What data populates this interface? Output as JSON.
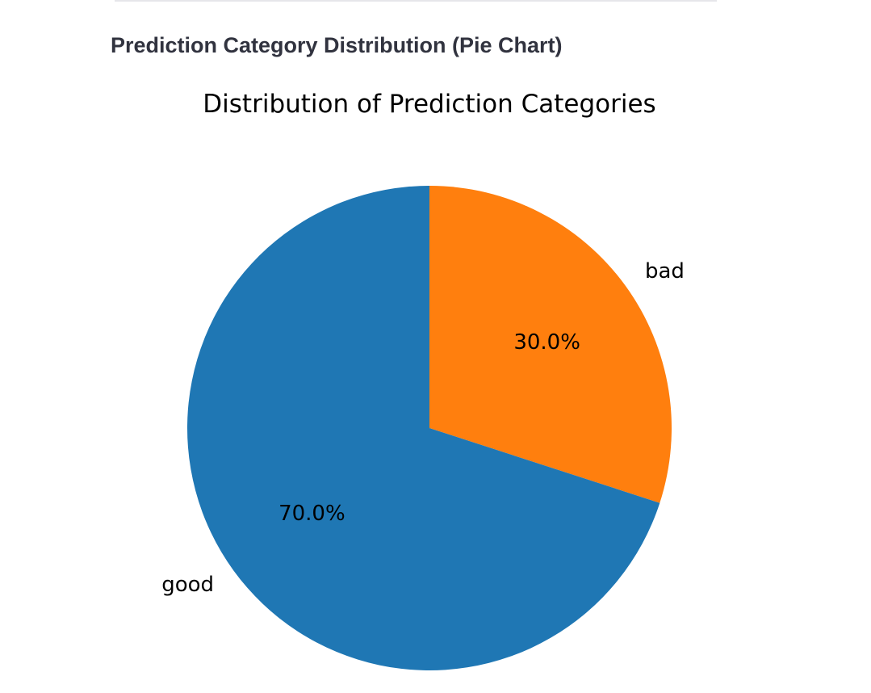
{
  "section": {
    "heading": "Prediction Category Distribution (Pie Chart)"
  },
  "chart_data": {
    "type": "pie",
    "title": "Distribution of Prediction Categories",
    "labels": [
      "bad",
      "good"
    ],
    "values": [
      30.0,
      70.0
    ],
    "percent_labels": [
      "30.0%",
      "70.0%"
    ],
    "colors": [
      "#ff7f0e",
      "#1f77b4"
    ],
    "start_angle_deg": 90,
    "direction": "clockwise"
  }
}
